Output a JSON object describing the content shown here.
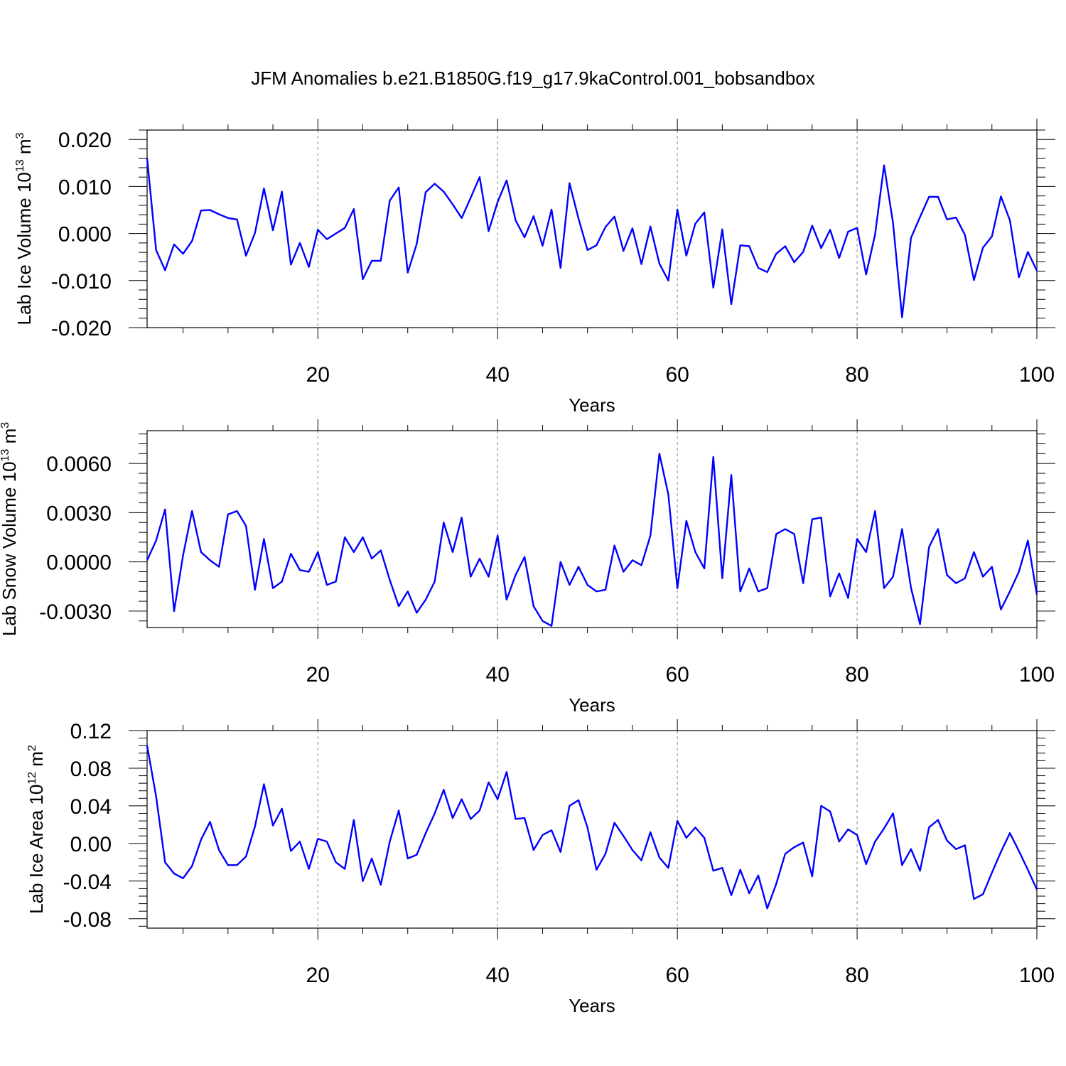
{
  "title": "JFM Anomalies b.e21.B1850G.f19_g17.9kaControl.001_bobsandbox",
  "colors": {
    "line": "#0000ff",
    "axis": "#000000",
    "grid": "#888888"
  },
  "chart_data": [
    {
      "type": "line",
      "xlabel": "Years",
      "ylabel": {
        "text": "Lab Ice Volume 10",
        "sup": "13",
        "unit": " m",
        "unit_sup": "3"
      },
      "xlim": [
        1,
        100
      ],
      "ylim": [
        -0.02,
        0.022
      ],
      "xticks": [
        "20",
        "40",
        "60",
        "80",
        "100"
      ],
      "yticks": [
        "-0.020",
        "-0.010",
        "0.000",
        "0.010",
        "0.020"
      ],
      "ytick_values": [
        -0.02,
        -0.01,
        0.0,
        0.01,
        0.02
      ],
      "grid_x": [
        20,
        40,
        60,
        80
      ],
      "series": [
        {
          "values": [
            0.016,
            -0.0035,
            -0.0078,
            -0.0023,
            -0.0043,
            -0.0016,
            0.0049,
            0.005,
            0.0041,
            0.0033,
            0.003,
            -0.0047,
            0.0001,
            0.0096,
            0.0007,
            0.0089,
            -0.0066,
            -0.002,
            -0.0071,
            0.0008,
            -0.0012,
            0.0,
            0.0012,
            0.0052,
            -0.0097,
            -0.0058,
            -0.0058,
            0.007,
            0.0098,
            -0.0083,
            -0.0022,
            0.0088,
            0.0106,
            0.0089,
            0.0062,
            0.0033,
            0.0076,
            0.012,
            0.0005,
            0.0067,
            0.0113,
            0.0028,
            -0.0008,
            0.0037,
            -0.0026,
            0.0051,
            -0.0073,
            0.0107,
            0.0032,
            -0.0035,
            -0.0025,
            0.0014,
            0.0036,
            -0.0037,
            0.0011,
            -0.0065,
            0.0015,
            -0.0064,
            -0.01,
            0.0051,
            -0.0047,
            0.0021,
            0.0045,
            -0.0115,
            0.0009,
            -0.015,
            -0.0025,
            -0.0027,
            -0.0073,
            -0.0082,
            -0.0043,
            -0.0027,
            -0.0061,
            -0.0039,
            0.0017,
            -0.0031,
            0.0008,
            -0.0052,
            0.0004,
            0.0012,
            -0.0087,
            -0.0002,
            0.0145,
            0.0022,
            -0.0178,
            -0.0009,
            0.0035,
            0.0078,
            0.0078,
            0.003,
            0.0034,
            -0.0003,
            -0.0099,
            -0.003,
            -0.0006,
            0.0079,
            0.0028,
            -0.0093,
            -0.0039,
            -0.0079
          ]
        }
      ]
    },
    {
      "type": "line",
      "xlabel": "Years",
      "ylabel": {
        "text": "Lab Snow Volume 10",
        "sup": "13",
        "unit": " m",
        "unit_sup": "3"
      },
      "xlim": [
        1,
        100
      ],
      "ylim": [
        -0.004,
        0.008
      ],
      "xticks": [
        "20",
        "40",
        "60",
        "80",
        "100"
      ],
      "yticks": [
        "-0.0030",
        "0.0000",
        "0.0030",
        "0.0060"
      ],
      "ytick_values": [
        -0.003,
        0.0,
        0.003,
        0.006
      ],
      "grid_x": [
        20,
        40,
        60,
        80
      ],
      "series": [
        {
          "values": [
            0.0001,
            0.0013,
            0.0032,
            -0.003,
            0.0004,
            0.0031,
            0.0006,
            0.0001,
            -0.0003,
            0.0029,
            0.0031,
            0.0022,
            -0.0017,
            0.0014,
            -0.0016,
            -0.0012,
            0.0005,
            -0.0005,
            -0.0006,
            0.0006,
            -0.0014,
            -0.0012,
            0.0015,
            0.0006,
            0.0015,
            0.0002,
            0.0007,
            -0.0011,
            -0.0027,
            -0.0018,
            -0.0031,
            -0.0023,
            -0.0012,
            0.0024,
            0.0006,
            0.0027,
            -0.0009,
            0.0002,
            -0.0009,
            0.0016,
            -0.0023,
            -0.0008,
            0.0003,
            -0.0027,
            -0.0036,
            -0.0039,
            0.0,
            -0.0014,
            -0.0003,
            -0.0014,
            -0.0018,
            -0.0017,
            0.001,
            -0.0006,
            0.0001,
            -0.0002,
            0.0016,
            0.0066,
            0.0041,
            -0.0016,
            0.0025,
            0.0006,
            -0.0004,
            0.0064,
            -0.001,
            0.0053,
            -0.0018,
            -0.0004,
            -0.0018,
            -0.0016,
            0.0017,
            0.002,
            0.0017,
            -0.0013,
            0.0026,
            0.0027,
            -0.0021,
            -0.0007,
            -0.0022,
            0.0014,
            0.0006,
            0.0031,
            -0.0016,
            -0.0009,
            0.002,
            -0.0016,
            -0.0038,
            0.0009,
            0.002,
            -0.0008,
            -0.0013,
            -0.001,
            0.0006,
            -0.0009,
            -0.0003,
            -0.0029,
            -0.0018,
            -0.0006,
            0.0013,
            -0.002
          ]
        }
      ]
    },
    {
      "type": "line",
      "xlabel": "Years",
      "ylabel": {
        "text": "Lab Ice Area 10",
        "sup": "12",
        "unit": " m",
        "unit_sup": "2"
      },
      "xlim": [
        1,
        100
      ],
      "ylim": [
        -0.09,
        0.12
      ],
      "xticks": [
        "20",
        "40",
        "60",
        "80",
        "100"
      ],
      "yticks": [
        "-0.08",
        "-0.04",
        "0.00",
        "0.04",
        "0.08",
        "0.12"
      ],
      "ytick_values": [
        -0.08,
        -0.04,
        0.0,
        0.04,
        0.08,
        0.12
      ],
      "grid_x": [
        20,
        40,
        60,
        80
      ],
      "series": [
        {
          "values": [
            0.104,
            0.05,
            -0.02,
            -0.032,
            -0.037,
            -0.024,
            0.004,
            0.023,
            -0.007,
            -0.023,
            -0.023,
            -0.014,
            0.018,
            0.063,
            0.019,
            0.037,
            -0.008,
            0.002,
            -0.027,
            0.005,
            0.002,
            -0.02,
            -0.027,
            0.025,
            -0.04,
            -0.016,
            -0.044,
            0.002,
            0.035,
            -0.016,
            -0.012,
            0.011,
            0.032,
            0.057,
            0.027,
            0.047,
            0.026,
            0.035,
            0.065,
            0.047,
            0.076,
            0.026,
            0.027,
            -0.007,
            0.009,
            0.014,
            -0.009,
            0.04,
            0.046,
            0.017,
            -0.028,
            -0.011,
            0.022,
            0.008,
            -0.007,
            -0.018,
            0.012,
            -0.015,
            -0.026,
            0.024,
            0.006,
            0.017,
            0.006,
            -0.029,
            -0.026,
            -0.055,
            -0.028,
            -0.053,
            -0.034,
            -0.069,
            -0.043,
            -0.011,
            -0.004,
            0.001,
            -0.035,
            0.04,
            0.034,
            0.002,
            0.015,
            0.009,
            -0.022,
            0.002,
            0.016,
            0.032,
            -0.023,
            -0.006,
            -0.029,
            0.017,
            0.025,
            0.003,
            -0.006,
            -0.002,
            -0.059,
            -0.054,
            -0.031,
            -0.009,
            0.011,
            -0.008,
            -0.028,
            -0.049
          ]
        }
      ]
    }
  ]
}
